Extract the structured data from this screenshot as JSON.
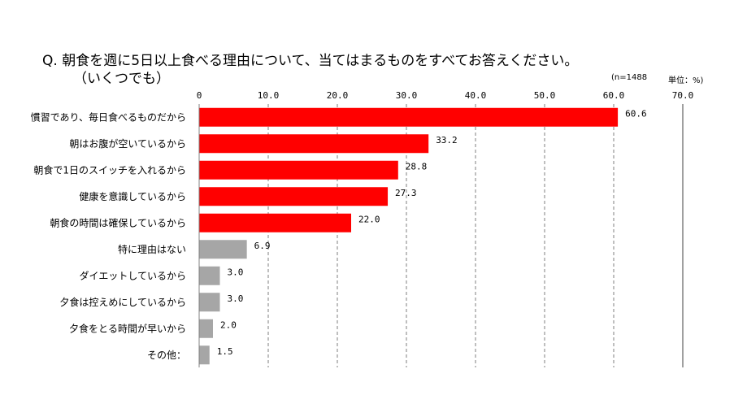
{
  "chart_data": {
    "type": "bar",
    "orientation": "horizontal",
    "title": "Q. 朝食を週に5日以上食べる理由について、当てはまるものをすべてお答えください。",
    "subtitle": "（いくつでも）",
    "sample_note": "(n=1488",
    "unit_note": "単位：%)",
    "categories": [
      "慣習であり、毎日食べるものだから",
      "朝はお腹が空いているから",
      "朝食で1日のスイッチを入れるから",
      "健康を意識しているから",
      "朝食の時間は確保しているから",
      "特に理由はない",
      "ダイエットしているから",
      "夕食は控えめにしているから",
      "夕食をとる時間が早いから",
      "その他："
    ],
    "values": [
      60.6,
      33.2,
      28.8,
      27.3,
      22.0,
      6.9,
      3.0,
      3.0,
      2.0,
      1.5
    ],
    "value_labels": [
      "60.6",
      "33.2",
      "28.8",
      "27.3",
      "22.0",
      "6.9",
      "3.0",
      "3.0",
      "2.0",
      "1.5"
    ],
    "bar_colors": [
      "#ff0000",
      "#ff0000",
      "#ff0000",
      "#ff0000",
      "#ff0000",
      "#a6a6a6",
      "#a6a6a6",
      "#a6a6a6",
      "#a6a6a6",
      "#a6a6a6"
    ],
    "xlim": [
      0,
      70
    ],
    "ticks": [
      0,
      10,
      20,
      30,
      40,
      50,
      60,
      70
    ],
    "tick_labels": [
      "0",
      "10.0",
      "20.0",
      "30.0",
      "40.0",
      "50.0",
      "60.0",
      "70.0"
    ],
    "legend": "none",
    "grid": "dashed vertical"
  }
}
